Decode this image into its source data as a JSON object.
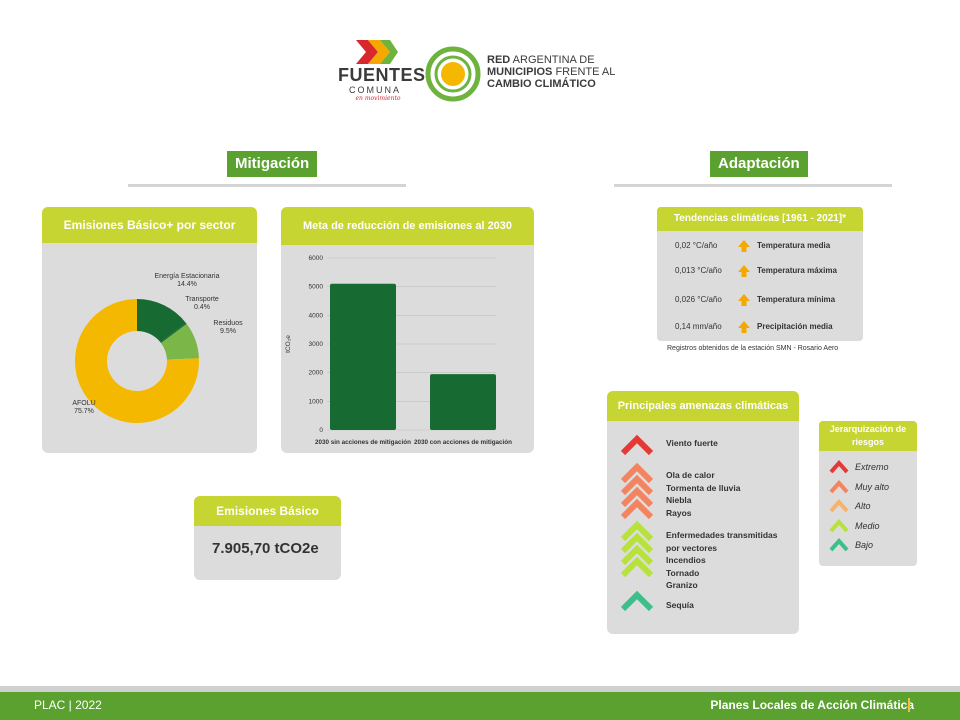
{
  "header": {
    "fuentes_title": "FUENTES",
    "fuentes_sub": "COMUNA",
    "fuentes_tag": "en movimiento",
    "red_line1_bold": "RED",
    "red_line1_rest": " ARGENTINA DE",
    "red_line2_bold": "MUNICIPIOS",
    "red_line2_rest": " FRENTE AL",
    "red_line3": "CAMBIO CLIMÁTICO"
  },
  "mitigation": {
    "title": "Mitigación",
    "pie_card": {
      "title": "Emisiones Básico+ por sector",
      "labels": {
        "energia": [
          "Energía Estacionaria",
          "14.4%"
        ],
        "transporte": [
          "Transporte",
          "0.4%"
        ],
        "residuos": [
          "Residuos",
          "9.5%"
        ],
        "afolu": [
          "AFOLU",
          "75.7%"
        ]
      }
    },
    "bar_card": {
      "title": "Meta de reducción de emisiones al 2030"
    },
    "basico_card": {
      "title": "Emisiones Básico",
      "value": "7.905,70 tCO2e"
    }
  },
  "adaptation": {
    "title": "Adaptación",
    "trends": {
      "title": "Tendencias climáticas [1961 - 2021]*",
      "rows": [
        {
          "value": "0,02 °C/año",
          "name": "Temperatura media"
        },
        {
          "value": "0,013 °C/año",
          "name": "Temperatura máxima"
        },
        {
          "value": "0,026 °C/año",
          "name": "Temperatura mínima"
        },
        {
          "value": "0,14 mm/año",
          "name": "Precipitación media"
        }
      ],
      "note": "Registros obtenidos de la estación SMN - Rosario Aero"
    },
    "threats": {
      "title": "Principales amenazas climáticas",
      "groups": [
        {
          "level": "extremo",
          "items": [
            "Viento fuerte"
          ]
        },
        {
          "level": "muy_alto",
          "items": [
            "Ola de calor",
            "Tormenta de lluvia",
            "Niebla",
            "Rayos"
          ]
        },
        {
          "level": "medio",
          "items": [
            "Enfermedades transmitidas",
            "por vectores",
            "Incendios",
            "Tornado",
            "Granizo"
          ]
        },
        {
          "level": "bajo",
          "items": [
            "Sequía"
          ]
        }
      ]
    },
    "risk": {
      "title": "Jerarquización de riesgos",
      "levels": [
        {
          "label": "Extremo",
          "color": "#e53935"
        },
        {
          "label": "Muy alto",
          "color": "#f4845f"
        },
        {
          "label": "Alto",
          "color": "#f7b36b"
        },
        {
          "label": "Medio",
          "color": "#b6e23a"
        },
        {
          "label": "Bajo",
          "color": "#3dbf8c"
        }
      ]
    }
  },
  "colors": {
    "green_dark": "#176b32",
    "green_light": "#7ab648",
    "orange": "#f5b800",
    "lime": "#c6d531",
    "section_green": "#5ba12f",
    "trend_arrow": "#f5a800"
  },
  "chart_data": [
    {
      "type": "pie",
      "title": "Emisiones Básico+ por sector",
      "categories": [
        "Energía Estacionaria",
        "Transporte",
        "Residuos",
        "AFOLU"
      ],
      "values": [
        14.4,
        0.4,
        9.5,
        75.7
      ],
      "unit": "%",
      "donut": true
    },
    {
      "type": "bar",
      "title": "Meta de reducción de emisiones al 2030",
      "categories": [
        "2030 sin acciones de mitigación",
        "2030 con acciones de mitigación"
      ],
      "values": [
        5100,
        1950
      ],
      "ylabel": "tCO₂e",
      "ylim": [
        0,
        6000
      ],
      "yticks": [
        0,
        1000,
        2000,
        3000,
        4000,
        5000,
        6000
      ],
      "grid": true
    }
  ],
  "footer": {
    "left": "PLAC  | 2022",
    "right": "Planes Locales de Acción Climática"
  }
}
